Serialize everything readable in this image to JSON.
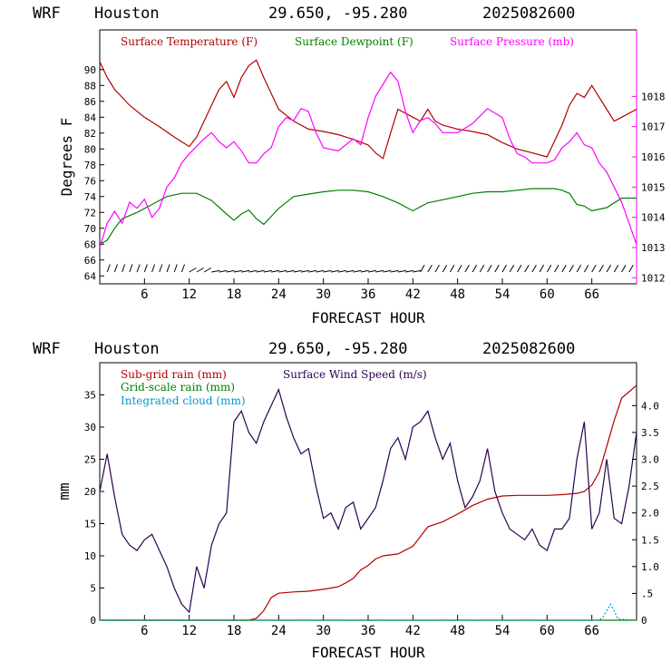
{
  "chart_data": [
    {
      "type": "line",
      "header": {
        "model": "WRF",
        "location": "Houston",
        "coords": "29.650, -95.280",
        "date": "2025082600"
      },
      "xlabel": "FORECAST HOUR",
      "ylabel": "Degrees F",
      "xlim": [
        0,
        72
      ],
      "x_ticks": [
        "6",
        "12",
        "18",
        "24",
        "30",
        "36",
        "42",
        "48",
        "54",
        "60",
        "66"
      ],
      "x_tick_values": [
        6,
        12,
        18,
        24,
        30,
        36,
        42,
        48,
        54,
        60,
        66
      ],
      "ylim": [
        63,
        95
      ],
      "y_ticks": [
        "64",
        "66",
        "68",
        "70",
        "72",
        "74",
        "76",
        "78",
        "80",
        "82",
        "84",
        "86",
        "88",
        "90"
      ],
      "y_tick_values": [
        64,
        66,
        68,
        70,
        72,
        74,
        76,
        78,
        80,
        82,
        84,
        86,
        88,
        90
      ],
      "y2lim": [
        1011.8,
        1020.2
      ],
      "y2_ticks": [
        "1012",
        "1013",
        "1014",
        "1015",
        "1016",
        "1017",
        "1018"
      ],
      "y2_tick_values": [
        1012,
        1013,
        1014,
        1015,
        1016,
        1017,
        1018
      ],
      "series": [
        {
          "name": "Surface Temperature (F)",
          "axis": "left",
          "color": "#b00000",
          "x": [
            0,
            1,
            2,
            3,
            4,
            6,
            8,
            10,
            12,
            13,
            14,
            15,
            16,
            17,
            18,
            19,
            20,
            21,
            22,
            23,
            24,
            26,
            28,
            30,
            32,
            34,
            36,
            37,
            38,
            39,
            40,
            41,
            42,
            43,
            44,
            45,
            46,
            48,
            50,
            52,
            54,
            56,
            58,
            60,
            61,
            62,
            63,
            64,
            65,
            66,
            67,
            68,
            69,
            70,
            72
          ],
          "y": [
            91,
            89,
            87.5,
            86.5,
            85.5,
            84,
            82.8,
            81.5,
            80.3,
            81.5,
            83.5,
            85.5,
            87.5,
            88.5,
            86.5,
            89,
            90.5,
            91.2,
            89,
            87,
            85,
            83.5,
            82.5,
            82.2,
            81.8,
            81.2,
            80.5,
            79.5,
            78.8,
            82,
            85,
            84.5,
            84,
            83.5,
            85,
            83.5,
            83,
            82.5,
            82.2,
            81.8,
            80.8,
            80,
            79.5,
            79,
            81,
            83,
            85.5,
            87,
            86.5,
            88,
            86.5,
            85,
            83.5,
            84,
            85
          ]
        },
        {
          "name": "Surface Dewpoint (F)",
          "axis": "left",
          "color": "#008000",
          "x": [
            0,
            1,
            2,
            3,
            5,
            7,
            9,
            11,
            13,
            15,
            17,
            18,
            19,
            20,
            21,
            22,
            24,
            26,
            28,
            30,
            32,
            34,
            36,
            38,
            40,
            42,
            44,
            46,
            48,
            50,
            52,
            54,
            56,
            58,
            60,
            61,
            62,
            63,
            64,
            65,
            66,
            68,
            70,
            72
          ],
          "y": [
            68,
            68.5,
            70,
            71.2,
            72,
            73,
            74,
            74.4,
            74.4,
            73.5,
            71.8,
            71,
            71.8,
            72.3,
            71.2,
            70.5,
            72.5,
            74,
            74.3,
            74.6,
            74.8,
            74.8,
            74.6,
            74,
            73.2,
            72.2,
            73.2,
            73.6,
            74,
            74.4,
            74.6,
            74.6,
            74.8,
            75,
            75,
            75,
            74.8,
            74.4,
            73,
            72.8,
            72.2,
            72.6,
            73.8,
            73.8
          ]
        },
        {
          "name": "Surface Pressure (mb)",
          "axis": "right",
          "color": "#ff00ff",
          "x": [
            0,
            1,
            2,
            3,
            4,
            5,
            6,
            7,
            8,
            9,
            10,
            11,
            12,
            14,
            15,
            16,
            17,
            18,
            19,
            20,
            21,
            22,
            23,
            24,
            25,
            26,
            27,
            28,
            29,
            30,
            32,
            34,
            35,
            36,
            37,
            38,
            39,
            40,
            41,
            42,
            43,
            44,
            45,
            46,
            48,
            50,
            52,
            54,
            55,
            56,
            57,
            58,
            60,
            61,
            62,
            63,
            64,
            65,
            66,
            67,
            68,
            69,
            70,
            71,
            72
          ],
          "y": [
            1013,
            1013.8,
            1014.2,
            1013.8,
            1014.5,
            1014.3,
            1014.6,
            1014,
            1014.3,
            1015,
            1015.3,
            1015.8,
            1016.1,
            1016.6,
            1016.8,
            1016.5,
            1016.3,
            1016.5,
            1016.2,
            1015.8,
            1015.8,
            1016.1,
            1016.3,
            1017,
            1017.3,
            1017.2,
            1017.6,
            1017.5,
            1016.8,
            1016.3,
            1016.2,
            1016.6,
            1016.4,
            1017.3,
            1018,
            1018.4,
            1018.8,
            1018.5,
            1017.5,
            1016.8,
            1017.2,
            1017.3,
            1017.1,
            1016.8,
            1016.8,
            1017.1,
            1017.6,
            1017.3,
            1016.6,
            1016.1,
            1016,
            1015.8,
            1015.8,
            1015.9,
            1016.3,
            1016.5,
            1016.8,
            1016.4,
            1016.3,
            1015.8,
            1015.5,
            1015,
            1014.5,
            1013.8,
            1013.1
          ]
        }
      ]
    },
    {
      "type": "line",
      "header": {
        "model": "WRF",
        "location": "Houston",
        "coords": "29.650, -95.280",
        "date": "2025082600"
      },
      "xlabel": "FORECAST HOUR",
      "ylabel": "mm",
      "xlim": [
        0,
        72
      ],
      "x_ticks": [
        "6",
        "12",
        "18",
        "24",
        "30",
        "36",
        "42",
        "48",
        "54",
        "60",
        "66"
      ],
      "x_tick_values": [
        6,
        12,
        18,
        24,
        30,
        36,
        42,
        48,
        54,
        60,
        66
      ],
      "ylim": [
        0,
        40
      ],
      "y_ticks": [
        "0",
        "5",
        "10",
        "15",
        "20",
        "25",
        "30",
        "35"
      ],
      "y_tick_values": [
        0,
        5,
        10,
        15,
        20,
        25,
        30,
        35
      ],
      "y2lim": [
        0,
        4.8
      ],
      "y2_ticks": [
        "0",
        ".5",
        "1.0",
        "1.5",
        "2.0",
        "2.5",
        "3.0",
        "3.5",
        "4.0"
      ],
      "y2_tick_values": [
        0,
        0.5,
        1.0,
        1.5,
        2.0,
        2.5,
        3.0,
        3.5,
        4.0
      ],
      "series": [
        {
          "name": "Sub-grid rain (mm)",
          "axis": "left",
          "color": "#b00000",
          "x": [
            0,
            20,
            21,
            22,
            23,
            24,
            26,
            28,
            30,
            32,
            33,
            34,
            35,
            36,
            37,
            38,
            40,
            42,
            43,
            44,
            46,
            48,
            50,
            52,
            54,
            56,
            58,
            60,
            62,
            64,
            65,
            66,
            67,
            68,
            69,
            70,
            72
          ],
          "y": [
            0,
            0,
            0.3,
            1.5,
            3.5,
            4.2,
            4.4,
            4.5,
            4.8,
            5.2,
            5.8,
            6.5,
            7.8,
            8.5,
            9.5,
            10,
            10.3,
            11.5,
            13,
            14.5,
            15.3,
            16.5,
            17.8,
            18.8,
            19.3,
            19.4,
            19.4,
            19.4,
            19.5,
            19.7,
            20,
            21,
            23,
            27,
            31,
            34.5,
            36.5
          ]
        },
        {
          "name": "Grid-scale rain (mm)",
          "axis": "left",
          "color": "#008000",
          "x": [
            0,
            72
          ],
          "y": [
            0,
            0
          ]
        },
        {
          "name": "Integrated cloud (mm)",
          "axis": "left",
          "color": "#0099cc",
          "x": [
            0,
            67,
            67.5,
            68,
            68.5,
            69,
            69.5,
            72
          ],
          "y": [
            0,
            0,
            0.5,
            1.5,
            2.5,
            1.5,
            0.2,
            0
          ]
        },
        {
          "name": "Surface Wind Speed (m/s)",
          "axis": "right",
          "color": "#2a0050",
          "x": [
            0,
            1,
            2,
            3,
            4,
            5,
            6,
            7,
            8,
            9,
            10,
            11,
            12,
            13,
            14,
            15,
            16,
            17,
            18,
            19,
            20,
            21,
            22,
            23,
            24,
            25,
            26,
            27,
            28,
            29,
            30,
            31,
            32,
            33,
            34,
            35,
            36,
            37,
            38,
            39,
            40,
            41,
            42,
            43,
            44,
            45,
            46,
            47,
            48,
            49,
            50,
            51,
            52,
            53,
            54,
            55,
            56,
            57,
            58,
            59,
            60,
            61,
            62,
            63,
            64,
            65,
            66,
            67,
            68,
            69,
            70,
            71,
            72
          ],
          "y": [
            2.4,
            3.1,
            2.3,
            1.6,
            1.4,
            1.3,
            1.5,
            1.6,
            1.3,
            1.0,
            0.6,
            0.3,
            0.15,
            1.0,
            0.6,
            1.4,
            1.8,
            2.0,
            3.7,
            3.9,
            3.5,
            3.3,
            3.7,
            4.0,
            4.3,
            3.8,
            3.4,
            3.1,
            3.2,
            2.5,
            1.9,
            2.0,
            1.7,
            2.1,
            2.2,
            1.7,
            1.9,
            2.1,
            2.6,
            3.2,
            3.4,
            3.0,
            3.6,
            3.7,
            3.9,
            3.4,
            3.0,
            3.3,
            2.6,
            2.1,
            2.3,
            2.6,
            3.2,
            2.4,
            2.0,
            1.7,
            1.6,
            1.5,
            1.7,
            1.4,
            1.3,
            1.7,
            1.7,
            1.9,
            3.0,
            3.7,
            1.7,
            2.0,
            3.0,
            1.9,
            1.8,
            2.5,
            3.5
          ]
        }
      ]
    }
  ],
  "wind_barb_hours": [
    1,
    2,
    3,
    4,
    5,
    6,
    7,
    8,
    9,
    10,
    11,
    12,
    13,
    14,
    15,
    16,
    17,
    18,
    19,
    20,
    21,
    22,
    23,
    24,
    25,
    26,
    27,
    28,
    29,
    30,
    31,
    32,
    33,
    34,
    35,
    36,
    37,
    38,
    39,
    40,
    41,
    42,
    43,
    44,
    45,
    46,
    47,
    48,
    49,
    50,
    51,
    52,
    53,
    54,
    55,
    56,
    57,
    58,
    59,
    60,
    61,
    62,
    63,
    64,
    65,
    66,
    67,
    68,
    69,
    70,
    71
  ],
  "colors": {
    "temperature": "#b00000",
    "dewpoint": "#008000",
    "pressure": "#ff00ff",
    "subgrid_rain": "#b00000",
    "gridscale_rain": "#008000",
    "cloud": "#0099cc",
    "wind": "#2a0050"
  }
}
